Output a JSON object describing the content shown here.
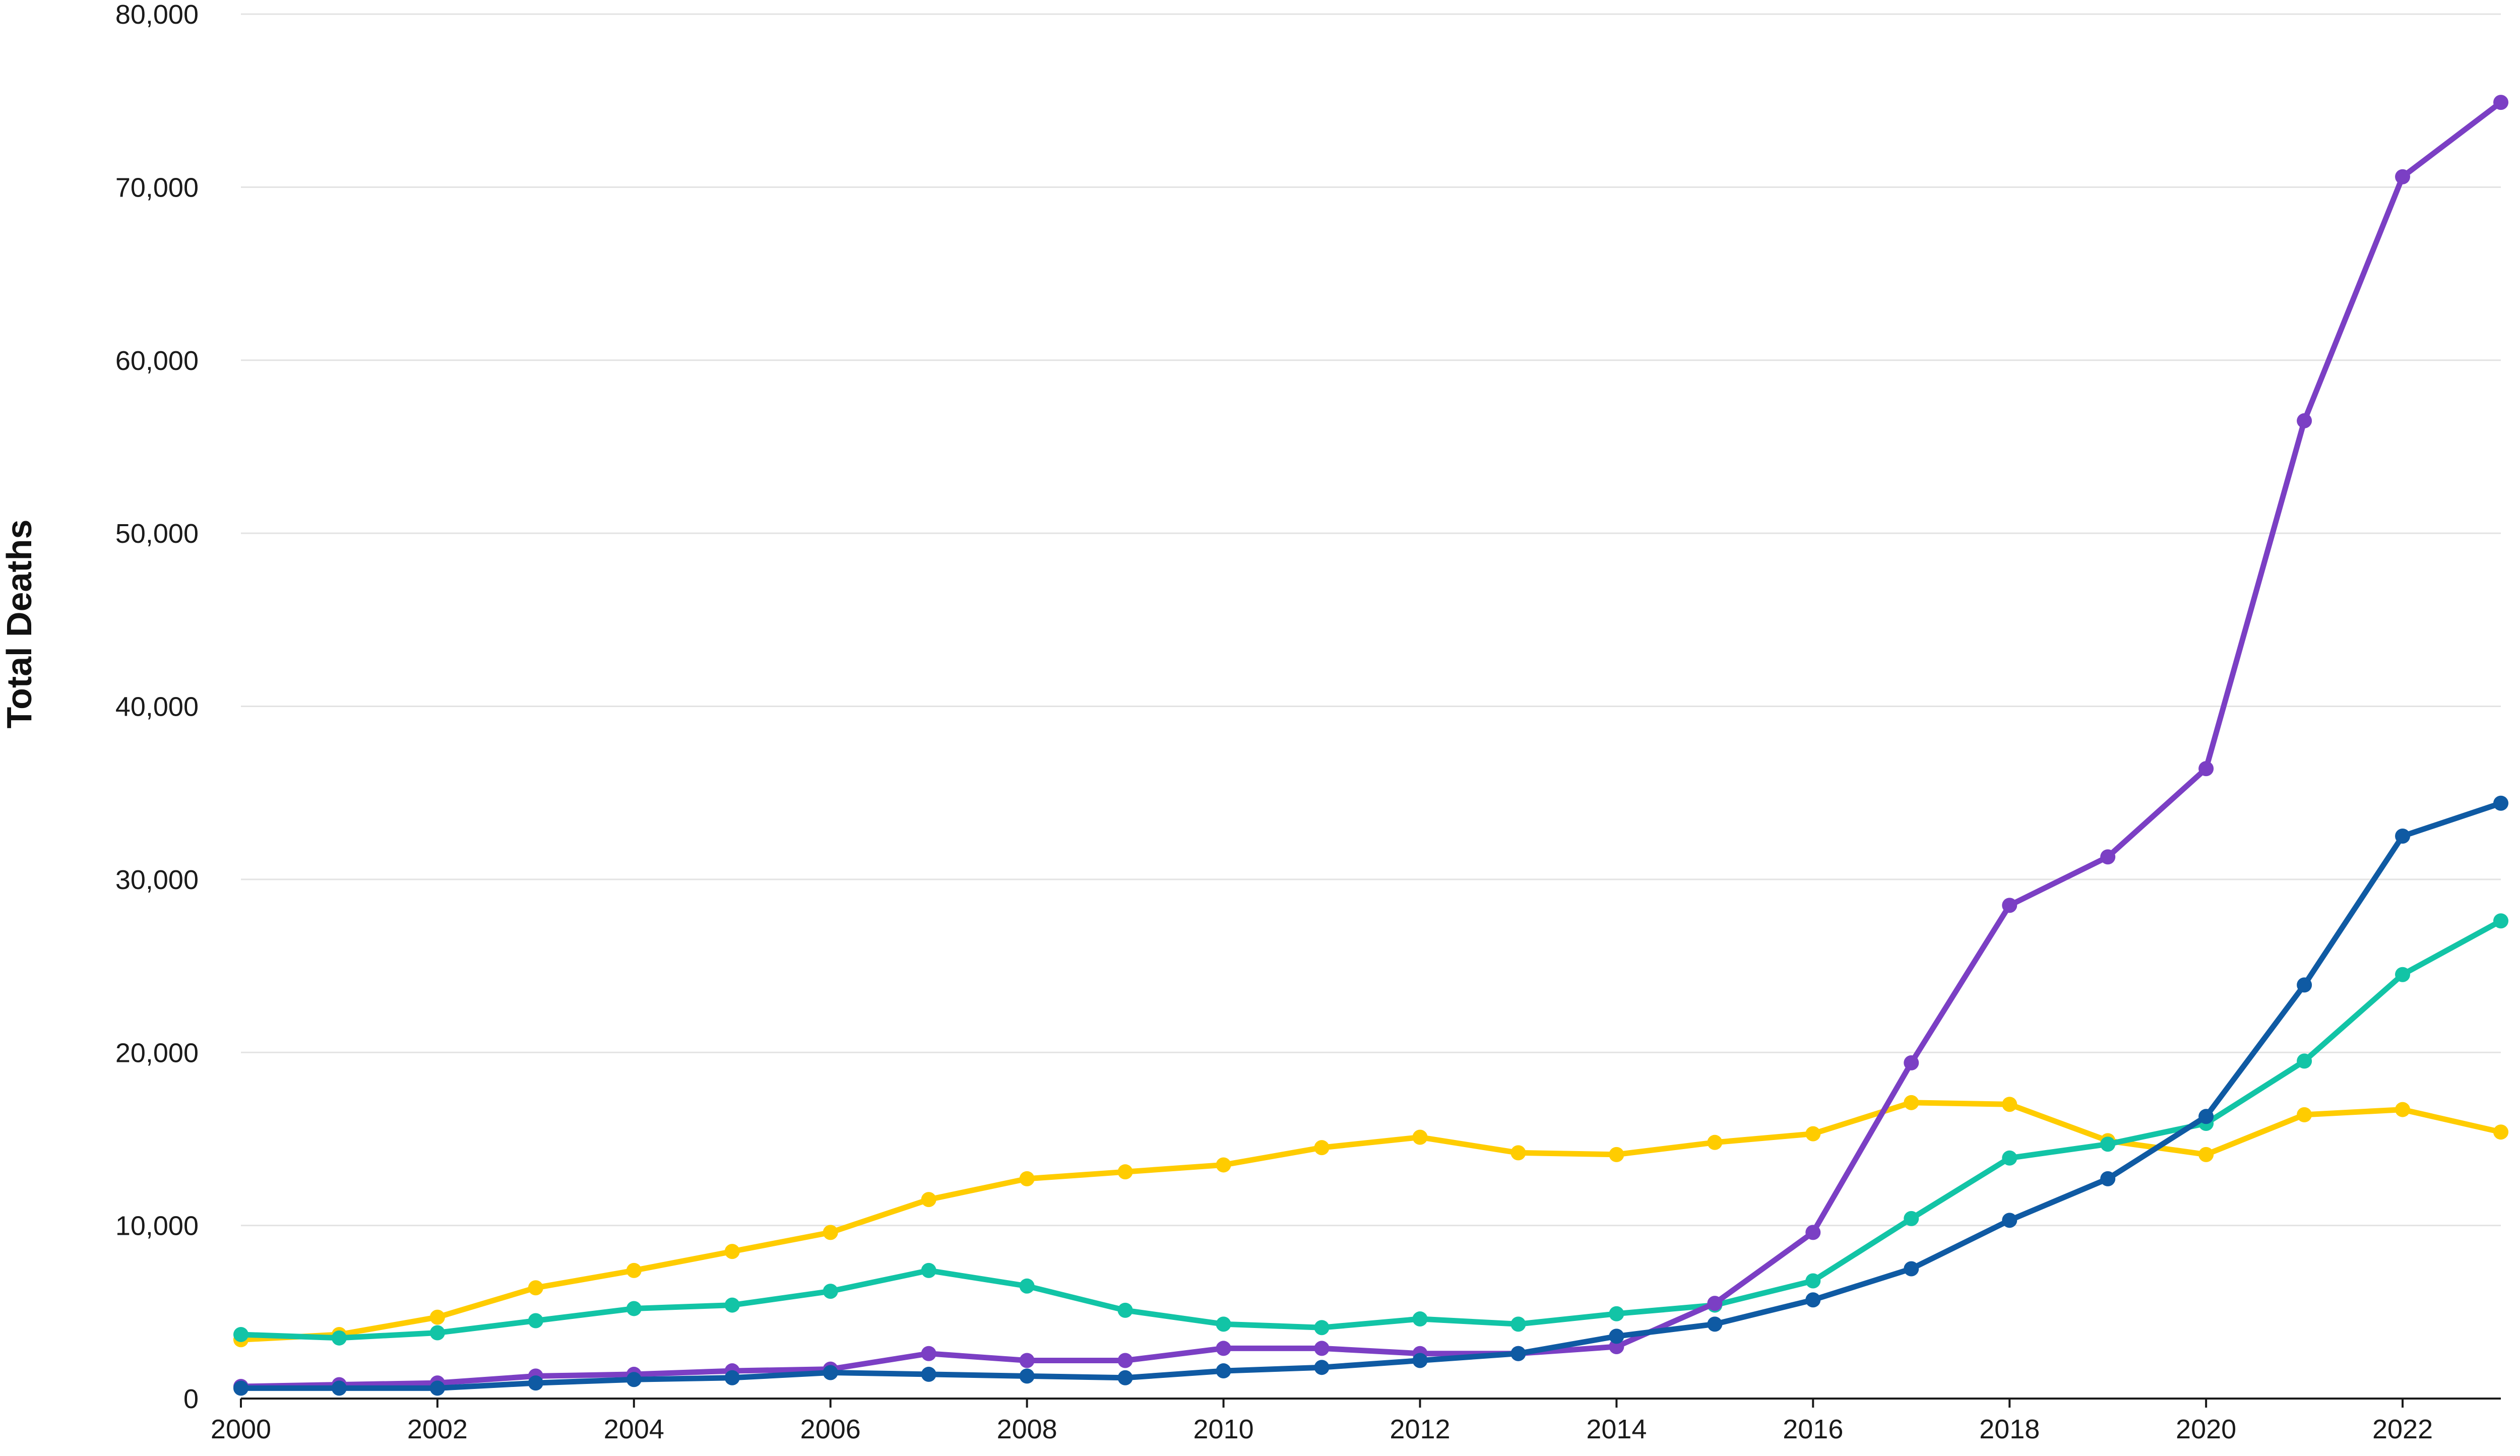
{
  "chart_data": {
    "type": "line",
    "title": "",
    "xlabel": "",
    "ylabel": "Total Deaths",
    "x": [
      2000,
      2001,
      2002,
      2003,
      2004,
      2005,
      2006,
      2007,
      2008,
      2009,
      2010,
      2011,
      2012,
      2013,
      2014,
      2015,
      2016,
      2017,
      2018,
      2019,
      2020,
      2021,
      2022,
      2023
    ],
    "xlim": [
      2000,
      2023
    ],
    "ylim": [
      0,
      80000
    ],
    "x_ticks": [
      2000,
      2002,
      2004,
      2006,
      2008,
      2010,
      2012,
      2014,
      2016,
      2018,
      2020,
      2022
    ],
    "x_tick_labels": [
      "2000",
      "2002",
      "2004",
      "2006",
      "2008",
      "2010",
      "2012",
      "2014",
      "2016",
      "2018",
      "2020",
      "2022"
    ],
    "y_ticks": [
      0,
      10000,
      20000,
      30000,
      40000,
      50000,
      60000,
      70000,
      80000
    ],
    "y_tick_labels": [
      "0",
      "10,000",
      "20,000",
      "30,000",
      "40,000",
      "50,000",
      "60,000",
      "70,000",
      "80,000"
    ],
    "grid": true,
    "legend": "none",
    "series": [
      {
        "color": "#ffcc00",
        "values": [
          3400,
          3700,
          4700,
          6400,
          7400,
          8500,
          9600,
          11500,
          12700,
          13100,
          13500,
          14500,
          15100,
          14200,
          14100,
          14800,
          15300,
          17100,
          17000,
          14900,
          14100,
          16400,
          16700,
          15400
        ]
      },
      {
        "color": "#12c4a6",
        "values": [
          3700,
          3500,
          3800,
          4500,
          5200,
          5400,
          6200,
          7400,
          6500,
          5100,
          4300,
          4100,
          4600,
          4300,
          4900,
          5400,
          6800,
          10400,
          13900,
          14700,
          15900,
          19500,
          24500,
          27600
        ]
      },
      {
        "color": "#7b3fc4",
        "values": [
          700,
          800,
          900,
          1300,
          1400,
          1600,
          1700,
          2600,
          2200,
          2200,
          2900,
          2900,
          2600,
          2600,
          3000,
          5500,
          9600,
          19400,
          28500,
          31300,
          36400,
          56500,
          70600,
          74900
        ]
      },
      {
        "color": "#0f5aa3",
        "values": [
          600,
          600,
          600,
          900,
          1100,
          1200,
          1500,
          1400,
          1300,
          1200,
          1600,
          1800,
          2200,
          2600,
          3600,
          4300,
          5700,
          7500,
          10300,
          12700,
          16300,
          23900,
          32500,
          34400
        ]
      }
    ]
  }
}
